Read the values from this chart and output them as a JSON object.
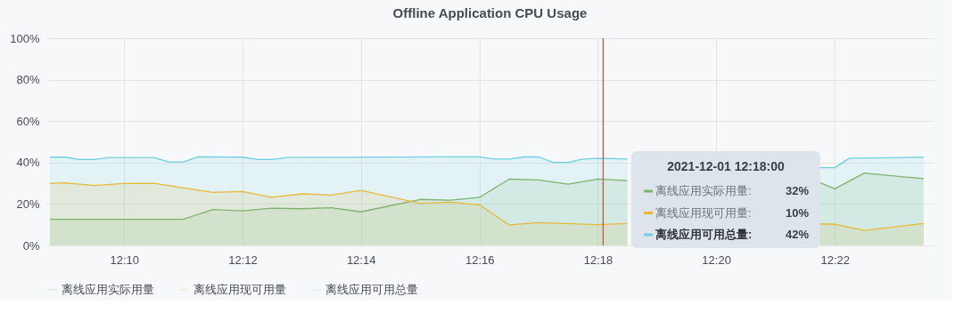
{
  "chart_data": {
    "type": "area",
    "title": "Offline Application CPU Usage",
    "xlim": [
      12.1448,
      12.3945
    ],
    "xticks": [
      {
        "value": 12.1667,
        "label": "12:10"
      },
      {
        "value": 12.2,
        "label": "12:12"
      },
      {
        "value": 12.2333,
        "label": "12:14"
      },
      {
        "value": 12.2667,
        "label": "12:16"
      },
      {
        "value": 12.3,
        "label": "12:18"
      },
      {
        "value": 12.3333,
        "label": "12:20"
      },
      {
        "value": 12.3667,
        "label": "12:22"
      }
    ],
    "ylim": [
      0,
      100
    ],
    "yticks": [
      {
        "value": 0,
        "label": "0%"
      },
      {
        "value": 20,
        "label": "20%"
      },
      {
        "value": 40,
        "label": "40%"
      },
      {
        "value": 60,
        "label": "60%"
      },
      {
        "value": 80,
        "label": "80%"
      },
      {
        "value": 100,
        "label": "100%"
      }
    ],
    "grid": true,
    "legend": "bottom left",
    "marker": "none",
    "line_style": "solid",
    "series": [
      {
        "name": "离线应用实际用量",
        "color": "#7eb26d",
        "x": [
          12.1458,
          12.1833,
          12.1917,
          12.2,
          12.2083,
          12.2167,
          12.225,
          12.2333,
          12.25,
          12.2583,
          12.2667,
          12.275,
          12.2833,
          12.2917,
          12.3,
          12.3083,
          12.3125,
          12.3625,
          12.3667,
          12.375,
          12.3917
        ],
        "values": [
          12.6,
          12.6,
          17.3,
          16.7,
          18.0,
          17.7,
          18.2,
          16.2,
          22.2,
          21.8,
          23.2,
          32.0,
          31.6,
          29.6,
          32,
          31.3,
          null,
          30.3,
          27.3,
          34.9,
          32.2
        ]
      },
      {
        "name": "离线应用现可用量",
        "color": "#eab839",
        "x": [
          12.1458,
          12.15,
          12.1583,
          12.1667,
          12.175,
          12.1917,
          12.2,
          12.2083,
          12.2167,
          12.2208,
          12.225,
          12.2333,
          12.25,
          12.2583,
          12.2667,
          12.275,
          12.2833,
          12.3,
          12.3083,
          12.3125,
          12.3625,
          12.3667,
          12.375,
          12.3917
        ],
        "values": [
          29.9,
          30.2,
          28.9,
          29.9,
          30.0,
          25.6,
          26.0,
          23.2,
          24.9,
          24.6,
          24.3,
          26.6,
          20.3,
          20.9,
          19.6,
          9.9,
          11.0,
          10,
          10.6,
          null,
          10.4,
          10.2,
          7.2,
          10.6
        ]
      },
      {
        "name": "离线应用可用总量",
        "color": "#6ed0e0",
        "x": [
          12.1458,
          12.15,
          12.1542,
          12.1583,
          12.1625,
          12.175,
          12.1792,
          12.1833,
          12.1875,
          12.2,
          12.2042,
          12.2083,
          12.2125,
          12.2667,
          12.2708,
          12.275,
          12.2792,
          12.2833,
          12.2875,
          12.2917,
          12.2958,
          12.3,
          12.3042,
          12.3083,
          12.3125,
          12.3625,
          12.3667,
          12.3708,
          12.3833,
          12.3917
        ],
        "values": [
          42.6,
          42.6,
          41.5,
          41.5,
          42.4,
          42.4,
          40.3,
          40.3,
          42.8,
          42.6,
          41.5,
          41.5,
          42.4,
          42.8,
          41.7,
          41.7,
          42.7,
          42.7,
          40.1,
          40.1,
          41.7,
          42,
          41.9,
          41.7,
          null,
          37.5,
          37.5,
          42.1,
          42.3,
          42.6
        ]
      }
    ],
    "ref_lines": [
      {
        "axis": "x",
        "value": 12.3015,
        "color": "#c4594a"
      }
    ],
    "annotations": [
      "2021-12-01 12:18:00",
      "离线应用实际用量:",
      "32%",
      "离线应用现可用量:",
      "10%",
      "离线应用可用总量:",
      "42%"
    ]
  }
}
